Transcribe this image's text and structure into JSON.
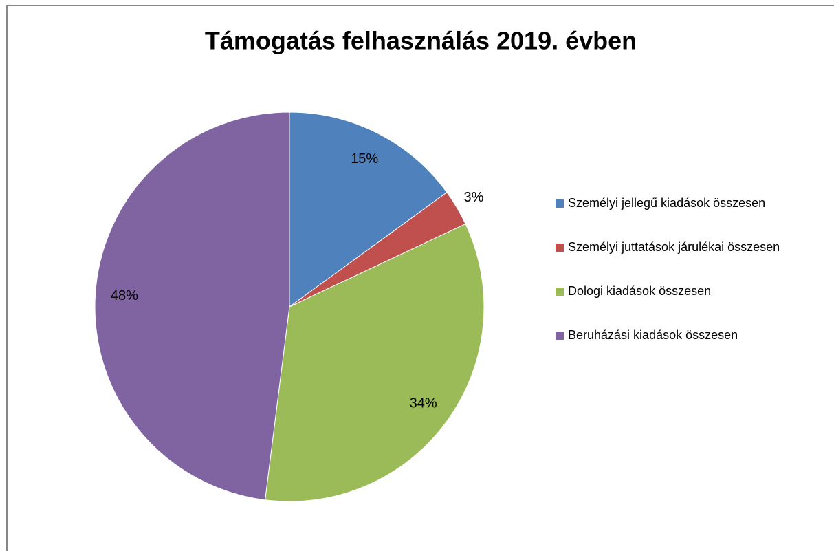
{
  "chart_data": {
    "type": "pie",
    "title": "Támogatás felhasználás 2019. évben",
    "categories": [
      "Személyi jellegű kiadások összesen",
      "Személyi juttatások járulékai összesen",
      "Dologi kiadások összesen",
      "Beruházási kiadások összesen"
    ],
    "values": [
      15,
      3,
      34,
      48
    ],
    "value_labels": [
      "15%",
      "3%",
      "34%",
      "48%"
    ],
    "colors": [
      "#4f81bd",
      "#c0504d",
      "#9bbb59",
      "#8064a2"
    ]
  }
}
